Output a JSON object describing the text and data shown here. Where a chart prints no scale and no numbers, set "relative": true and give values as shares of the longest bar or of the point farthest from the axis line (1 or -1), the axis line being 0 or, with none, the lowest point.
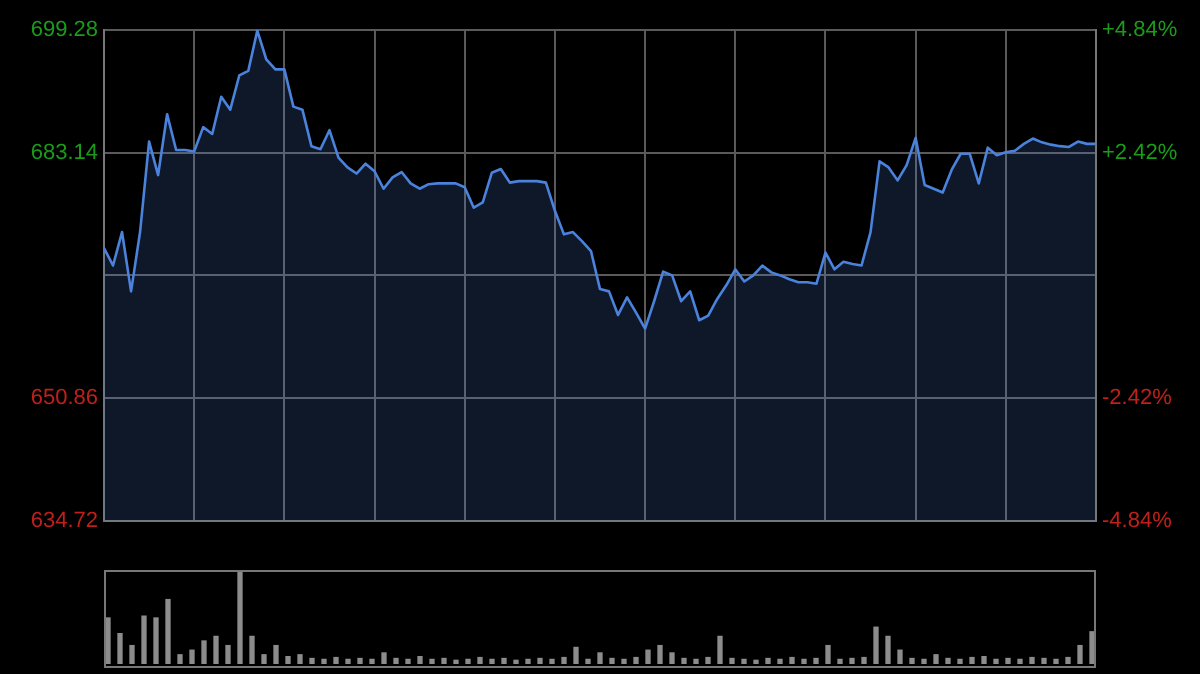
{
  "chart_data": [
    {
      "type": "area",
      "color": "#4a82dc",
      "categories": [
        null,
        null,
        null,
        null,
        null,
        null,
        null,
        null,
        null,
        null,
        null,
        null,
        null,
        null,
        null,
        null,
        null,
        null,
        null,
        null,
        null,
        null,
        null,
        null,
        null,
        null,
        null,
        null,
        null,
        null,
        null,
        null,
        null,
        null,
        null,
        null,
        null,
        null,
        null,
        null,
        null,
        null,
        null,
        null,
        null,
        null,
        null,
        null,
        null,
        null,
        null,
        null,
        null,
        null,
        null,
        null,
        null,
        null,
        null,
        null,
        null,
        null,
        null,
        null,
        null,
        null,
        null,
        null,
        null,
        null,
        null,
        null,
        null,
        null,
        null,
        null,
        null,
        null,
        null,
        null,
        null,
        null,
        null,
        null,
        null,
        null,
        null,
        null,
        null,
        null,
        null,
        null,
        null,
        null,
        null,
        null,
        null,
        null,
        null,
        null,
        null,
        null,
        null,
        null,
        null,
        null,
        null,
        null,
        null,
        null,
        null
      ],
      "values": [
        670.6,
        668.3,
        672.7,
        664.9,
        672.7,
        684.6,
        680.2,
        688.2,
        683.5,
        683.5,
        683.3,
        686.5,
        685.6,
        690.5,
        688.8,
        693.3,
        693.9,
        699.2,
        695.4,
        694.1,
        694.1,
        689.2,
        688.8,
        684.0,
        683.6,
        686.1,
        682.5,
        681.2,
        680.4,
        681.7,
        680.7,
        678.4,
        679.9,
        680.6,
        679.1,
        678.4,
        679.0,
        679.1,
        679.1,
        679.1,
        678.6,
        675.9,
        676.6,
        680.5,
        681.0,
        679.2,
        679.4,
        679.4,
        679.4,
        679.2,
        675.5,
        672.4,
        672.7,
        671.5,
        670.2,
        665.2,
        664.9,
        661.8,
        664.1,
        662.1,
        660.0,
        663.6,
        667.5,
        667.0,
        663.6,
        664.9,
        661.1,
        661.7,
        663.9,
        665.7,
        667.8,
        666.2,
        667.0,
        668.3,
        667.4,
        667.0,
        666.5,
        666.1,
        666.1,
        665.9,
        670.0,
        667.8,
        668.8,
        668.5,
        668.3,
        672.7,
        682.0,
        681.2,
        679.5,
        681.5,
        685.1,
        678.9,
        678.4,
        677.9,
        680.9,
        683.0,
        683.0,
        679.1,
        683.8,
        682.8,
        683.2,
        683.4,
        684.3,
        685.0,
        684.5,
        684.2,
        684.0,
        683.9,
        684.6,
        684.3,
        684.3
      ],
      "ylim": [
        634.72,
        699.28
      ],
      "yticks": [
        634.72,
        650.86,
        {
          "value": 667.0,
          "label": null
        },
        683.14,
        699.28
      ],
      "y2lim": [
        -4.84,
        4.84
      ],
      "y2ticks": [
        {
          "value": -4.84,
          "label": "-4.84%"
        },
        {
          "value": -2.42,
          "label": "-2.42%"
        },
        {
          "value": 2.42,
          "label": "+2.42%"
        },
        {
          "value": 4.84,
          "label": "+4.84%"
        }
      ],
      "grid": true
    },
    {
      "type": "bar",
      "relative": true,
      "color": "#8c8c8c",
      "categories": [
        null,
        null,
        null,
        null,
        null,
        null,
        null,
        null,
        null,
        null,
        null,
        null,
        null,
        null,
        null,
        null,
        null,
        null,
        null,
        null,
        null,
        null,
        null,
        null,
        null,
        null,
        null,
        null,
        null,
        null,
        null,
        null,
        null,
        null,
        null,
        null,
        null,
        null,
        null,
        null,
        null,
        null,
        null,
        null,
        null,
        null,
        null,
        null,
        null,
        null,
        null,
        null,
        null,
        null,
        null,
        null,
        null,
        null,
        null,
        null,
        null,
        null,
        null,
        null,
        null,
        null,
        null,
        null,
        null,
        null,
        null,
        null,
        null,
        null,
        null,
        null,
        null,
        null,
        null,
        null,
        null,
        null,
        null
      ],
      "values": [
        0.5,
        0.33,
        0.2,
        0.52,
        0.5,
        0.7,
        0.1,
        0.15,
        0.25,
        0.3,
        0.2,
        1,
        0.3,
        0.1,
        0.2,
        0.08,
        0.1,
        0.06,
        0.05,
        0.07,
        0.05,
        0.06,
        0.05,
        0.12,
        0.06,
        0.05,
        0.08,
        0.05,
        0.06,
        0.04,
        0.05,
        0.07,
        0.05,
        0.06,
        0.04,
        0.05,
        0.06,
        0.05,
        0.07,
        0.18,
        0.05,
        0.12,
        0.06,
        0.05,
        0.07,
        0.15,
        0.2,
        0.12,
        0.06,
        0.05,
        0.07,
        0.3,
        0.06,
        0.05,
        0.04,
        0.06,
        0.05,
        0.07,
        0.05,
        0.06,
        0.2,
        0.05,
        0.06,
        0.07,
        0.4,
        0.3,
        0.15,
        0.06,
        0.05,
        0.1,
        0.06,
        0.05,
        0.07,
        0.08,
        0.05,
        0.06,
        0.05,
        0.07,
        0.06,
        0.05,
        0.07,
        0.2,
        0.35
      ]
    }
  ]
}
